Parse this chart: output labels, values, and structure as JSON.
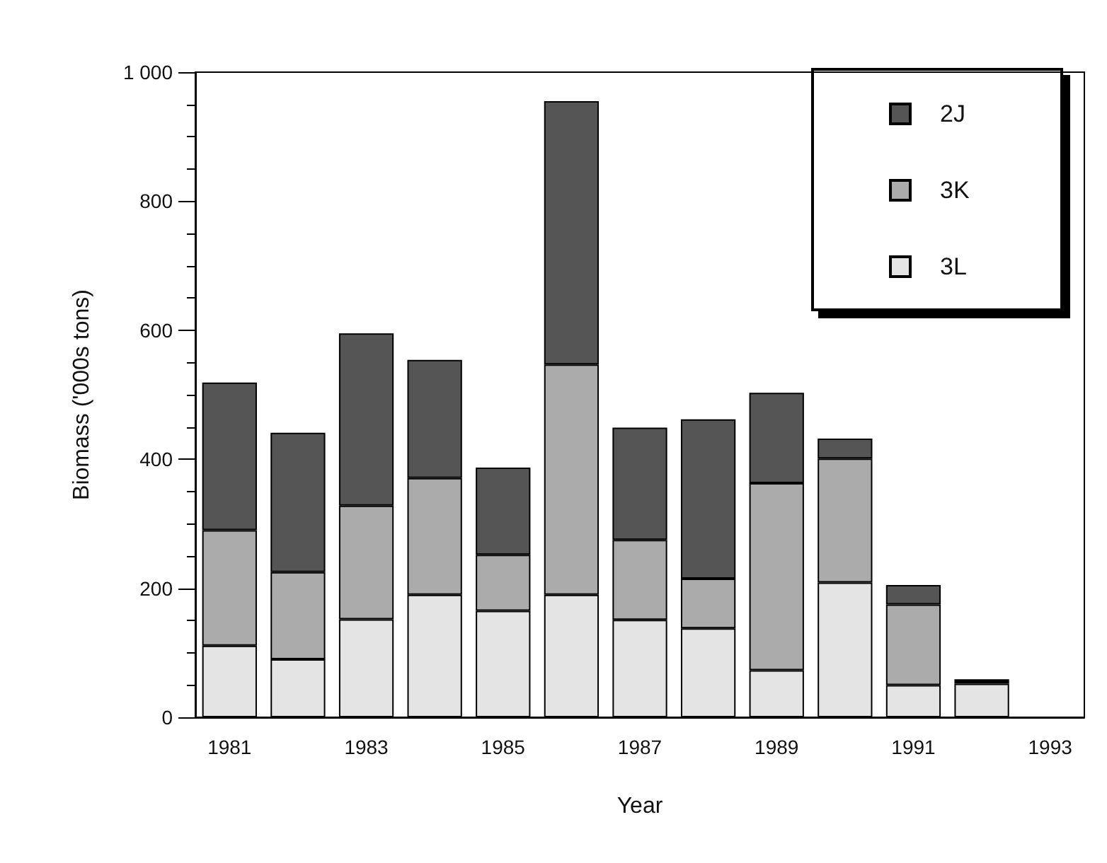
{
  "chart_data": {
    "type": "bar",
    "stacked": true,
    "xlabel": "Year",
    "ylabel": "Biomass ('000s tons)",
    "categories": [
      "1981",
      null,
      "1983",
      null,
      "1985",
      null,
      "1987",
      null,
      "1989",
      null,
      "1991",
      null,
      "1993"
    ],
    "series": [
      {
        "name": "3L",
        "color": "#e4e4e4",
        "values": [
          111,
          90,
          152,
          190,
          165,
          190,
          151,
          138,
          73,
          209,
          50,
          52,
          null
        ]
      },
      {
        "name": "3K",
        "color": "#ababab",
        "values": [
          179,
          135,
          176,
          181,
          87,
          357,
          124,
          77,
          290,
          192,
          125,
          4,
          null
        ]
      },
      {
        "name": "2J",
        "color": "#555555",
        "values": [
          229,
          216,
          267,
          183,
          135,
          408,
          174,
          247,
          140,
          31,
          30,
          3,
          null
        ]
      }
    ],
    "ylim": [
      0,
      1000
    ],
    "yticks": [
      0,
      200,
      400,
      600,
      800,
      {
        "value": 1000,
        "label": "1 000"
      }
    ],
    "grid": false,
    "legend": "top right"
  }
}
